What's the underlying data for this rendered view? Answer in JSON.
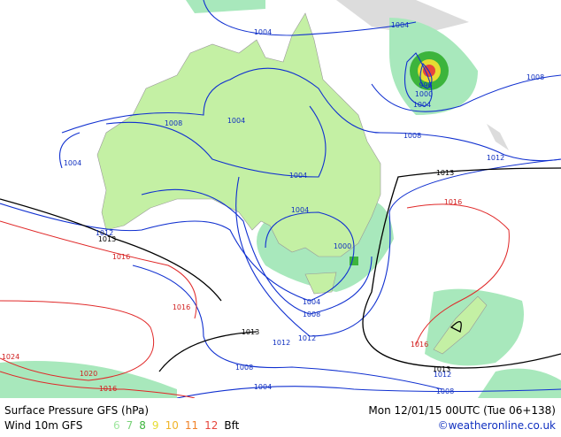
{
  "map": {
    "isobar_labels": [
      "1004",
      "1004",
      "1008",
      "996",
      "1000",
      "1004",
      "1008",
      "1004",
      "1004",
      "1008",
      "1012",
      "1004",
      "1013",
      "1016",
      "1004",
      "1012",
      "1013",
      "1016",
      "1000",
      "1004",
      "1008",
      "1016",
      "1013",
      "1012",
      "1012",
      "1016",
      "1024",
      "1008",
      "1013",
      "1012",
      "1020",
      "1016",
      "1004",
      "1008"
    ]
  },
  "footer": {
    "title": "Surface Pressure GFS (hPa)",
    "time": "Mon 12/01/15 00UTC (Tue 06+138)",
    "wind": "Wind 10m GFS",
    "scale": [
      {
        "label": "6",
        "color": "#a0e6a0"
      },
      {
        "label": "7",
        "color": "#78d278"
      },
      {
        "label": "8",
        "color": "#3cb43c"
      },
      {
        "label": "9",
        "color": "#e6dc32"
      },
      {
        "label": "10",
        "color": "#f0b428"
      },
      {
        "label": "11",
        "color": "#f08228"
      },
      {
        "label": "12",
        "color": "#e6463c"
      }
    ],
    "unit": "Bft",
    "credit": "©weatheronline.co.uk"
  }
}
